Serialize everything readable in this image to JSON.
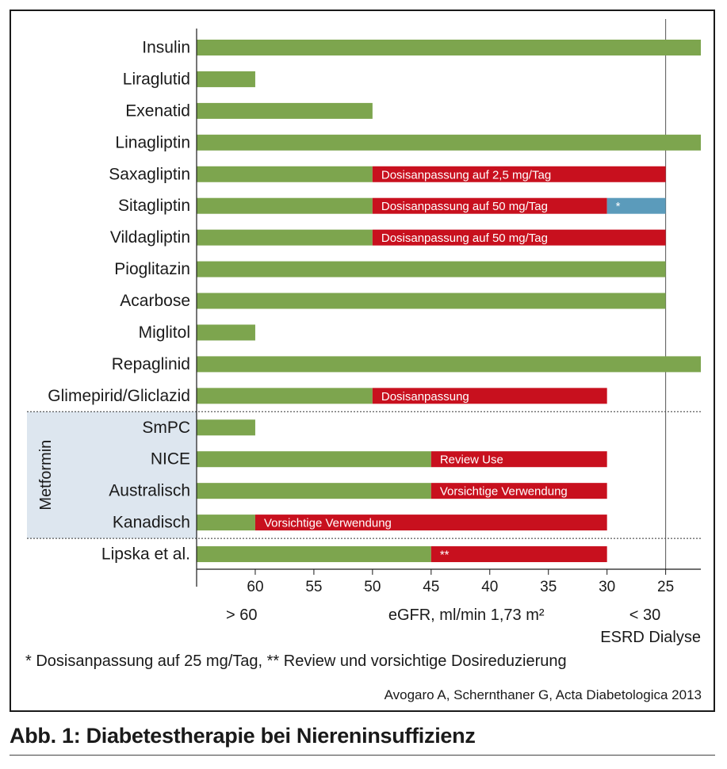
{
  "chart_data": {
    "type": "bar",
    "orientation": "horizontal-ranges",
    "xlabel": "eGFR, ml/min 1,73 m²",
    "x_ticks": [
      60,
      55,
      50,
      45,
      40,
      35,
      30,
      25
    ],
    "x_range": [
      65,
      22
    ],
    "x_reversed": true,
    "axis_notes": {
      "left": "> 60",
      "right": "< 30",
      "end": "ESRD Dialyse"
    },
    "reference_line": 25,
    "group": {
      "label": "Metformin",
      "rows": [
        "SmPC",
        "NICE",
        "Australisch",
        "Kanadisch"
      ]
    },
    "colors": {
      "ok": "#7da54e",
      "adjust": "#c8101e",
      "footnote": "#5b9bbb"
    },
    "rows": [
      {
        "label": "Insulin",
        "segments": [
          {
            "from": 65,
            "to": 22,
            "kind": "ok",
            "text": ""
          }
        ]
      },
      {
        "label": "Liraglutid",
        "segments": [
          {
            "from": 65,
            "to": 60,
            "kind": "ok",
            "text": ""
          }
        ]
      },
      {
        "label": "Exenatid",
        "segments": [
          {
            "from": 65,
            "to": 50,
            "kind": "ok",
            "text": ""
          }
        ]
      },
      {
        "label": "Linagliptin",
        "segments": [
          {
            "from": 65,
            "to": 22,
            "kind": "ok",
            "text": ""
          }
        ]
      },
      {
        "label": "Saxagliptin",
        "segments": [
          {
            "from": 65,
            "to": 50,
            "kind": "ok",
            "text": ""
          },
          {
            "from": 50,
            "to": 25,
            "kind": "adjust",
            "text": "Dosisanpassung auf 2,5 mg/Tag"
          }
        ]
      },
      {
        "label": "Sitagliptin",
        "segments": [
          {
            "from": 65,
            "to": 50,
            "kind": "ok",
            "text": ""
          },
          {
            "from": 50,
            "to": 30,
            "kind": "adjust",
            "text": "Dosisanpassung auf 50 mg/Tag"
          },
          {
            "from": 30,
            "to": 25,
            "kind": "footnote",
            "text": "*"
          }
        ]
      },
      {
        "label": "Vildagliptin",
        "segments": [
          {
            "from": 65,
            "to": 50,
            "kind": "ok",
            "text": ""
          },
          {
            "from": 50,
            "to": 25,
            "kind": "adjust",
            "text": "Dosisanpassung auf 50 mg/Tag"
          }
        ]
      },
      {
        "label": "Pioglitazin",
        "segments": [
          {
            "from": 65,
            "to": 25,
            "kind": "ok",
            "text": ""
          }
        ]
      },
      {
        "label": "Acarbose",
        "segments": [
          {
            "from": 65,
            "to": 25,
            "kind": "ok",
            "text": ""
          }
        ]
      },
      {
        "label": "Miglitol",
        "segments": [
          {
            "from": 65,
            "to": 60,
            "kind": "ok",
            "text": ""
          }
        ]
      },
      {
        "label": "Repaglinid",
        "segments": [
          {
            "from": 65,
            "to": 22,
            "kind": "ok",
            "text": ""
          }
        ]
      },
      {
        "label": "Glimepirid/Gliclazid",
        "segments": [
          {
            "from": 65,
            "to": 50,
            "kind": "ok",
            "text": ""
          },
          {
            "from": 50,
            "to": 30,
            "kind": "adjust",
            "text": "Dosisanpassung"
          }
        ]
      },
      {
        "label": "SmPC",
        "segments": [
          {
            "from": 65,
            "to": 60,
            "kind": "ok",
            "text": ""
          }
        ]
      },
      {
        "label": "NICE",
        "segments": [
          {
            "from": 65,
            "to": 45,
            "kind": "ok",
            "text": ""
          },
          {
            "from": 45,
            "to": 30,
            "kind": "adjust",
            "text": "Review Use"
          }
        ]
      },
      {
        "label": "Australisch",
        "segments": [
          {
            "from": 65,
            "to": 45,
            "kind": "ok",
            "text": ""
          },
          {
            "from": 45,
            "to": 30,
            "kind": "adjust",
            "text": "Vorsichtige Verwendung"
          }
        ]
      },
      {
        "label": "Kanadisch",
        "segments": [
          {
            "from": 65,
            "to": 60,
            "kind": "ok",
            "text": ""
          },
          {
            "from": 60,
            "to": 30,
            "kind": "adjust",
            "text": "Vorsichtige Verwendung"
          }
        ]
      },
      {
        "label": "Lipska et al.",
        "segments": [
          {
            "from": 65,
            "to": 45,
            "kind": "ok",
            "text": ""
          },
          {
            "from": 45,
            "to": 30,
            "kind": "adjust",
            "text": "**"
          }
        ]
      }
    ]
  },
  "footnote": "* Dosisanpassung auf 25 mg/Tag, ** Review und vorsichtige Dosireduzierung",
  "source": "Avogaro A, Schernthaner G, Acta Diabetologica 2013",
  "figure_title": "Abb. 1: Diabetestherapie bei Niereninsuffizienz"
}
